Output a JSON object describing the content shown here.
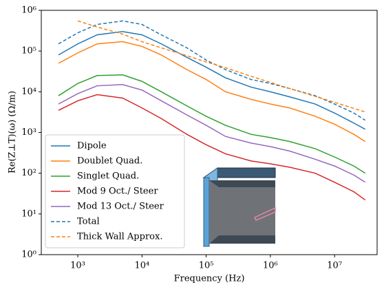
{
  "chart_data": {
    "type": "line",
    "xlabel": "Frequency (Hz)",
    "ylabel": "Re(Z⊥T)(ω) (Ω/m)",
    "xscale": "log",
    "yscale": "log",
    "xlim": [
      270,
      46000000
    ],
    "ylim": [
      1,
      1000000
    ],
    "xticks": [
      {
        "value": 1000,
        "label": "10³"
      },
      {
        "value": 10000,
        "label": "10⁴"
      },
      {
        "value": 100000,
        "label": "10⁵"
      },
      {
        "value": 1000000,
        "label": "10⁶"
      },
      {
        "value": 10000000,
        "label": "10⁷"
      }
    ],
    "yticks": [
      {
        "value": 1,
        "label": "10⁰"
      },
      {
        "value": 10,
        "label": "10¹"
      },
      {
        "value": 100,
        "label": "10²"
      },
      {
        "value": 1000,
        "label": "10³"
      },
      {
        "value": 10000,
        "label": "10⁴"
      },
      {
        "value": 100000,
        "label": "10⁵"
      },
      {
        "value": 1000000,
        "label": "10⁶"
      }
    ],
    "legend": "lower left",
    "x": [
      500,
      1000,
      2000,
      5000,
      10000,
      20000,
      50000,
      100000,
      200000,
      500000,
      1000000,
      2000000,
      5000000,
      10000000,
      20000000,
      30000000
    ],
    "series": [
      {
        "name": "Dipole",
        "color": "#1f77b4",
        "linestyle": "solid",
        "values": [
          80000,
          150000,
          250000,
          300000,
          250000,
          150000,
          70000,
          40000,
          22000,
          13000,
          10000,
          7500,
          5000,
          3000,
          1700,
          1200
        ]
      },
      {
        "name": "Doublet Quad.",
        "color": "#ff7f0e",
        "linestyle": "solid",
        "values": [
          50000,
          90000,
          150000,
          170000,
          130000,
          80000,
          35000,
          20000,
          10000,
          6500,
          5000,
          4000,
          2500,
          1600,
          900,
          600
        ]
      },
      {
        "name": "Singlet Quad.",
        "color": "#2ca02c",
        "linestyle": "solid",
        "values": [
          8000,
          16000,
          25000,
          26000,
          18000,
          10000,
          4500,
          2500,
          1500,
          900,
          750,
          600,
          400,
          250,
          150,
          100
        ]
      },
      {
        "name": "Mod 9 Oct./ Steer",
        "color": "#d62728",
        "linestyle": "solid",
        "values": [
          3500,
          6000,
          8500,
          7000,
          4000,
          2200,
          900,
          500,
          300,
          200,
          170,
          140,
          100,
          60,
          35,
          22
        ]
      },
      {
        "name": "Mod 13 Oct./ Steer",
        "color": "#9467bd",
        "linestyle": "solid",
        "values": [
          5000,
          9000,
          14000,
          15000,
          11000,
          6000,
          2700,
          1500,
          800,
          550,
          450,
          350,
          220,
          150,
          90,
          60
        ]
      },
      {
        "name": "Total",
        "color": "#1f77b4",
        "linestyle": "dashed",
        "values": [
          150000,
          280000,
          450000,
          550000,
          450000,
          250000,
          120000,
          60000,
          35000,
          20000,
          16000,
          12000,
          8000,
          5000,
          3000,
          2000
        ]
      },
      {
        "name": "Thick Wall Approx.",
        "color": "#ff7f0e",
        "linestyle": "dashed",
        "values": [
          null,
          550000,
          390000,
          260000,
          170000,
          120000,
          77000,
          54000,
          39000,
          24000,
          17000,
          12000,
          7700,
          5500,
          3900,
          3200
        ]
      }
    ]
  }
}
